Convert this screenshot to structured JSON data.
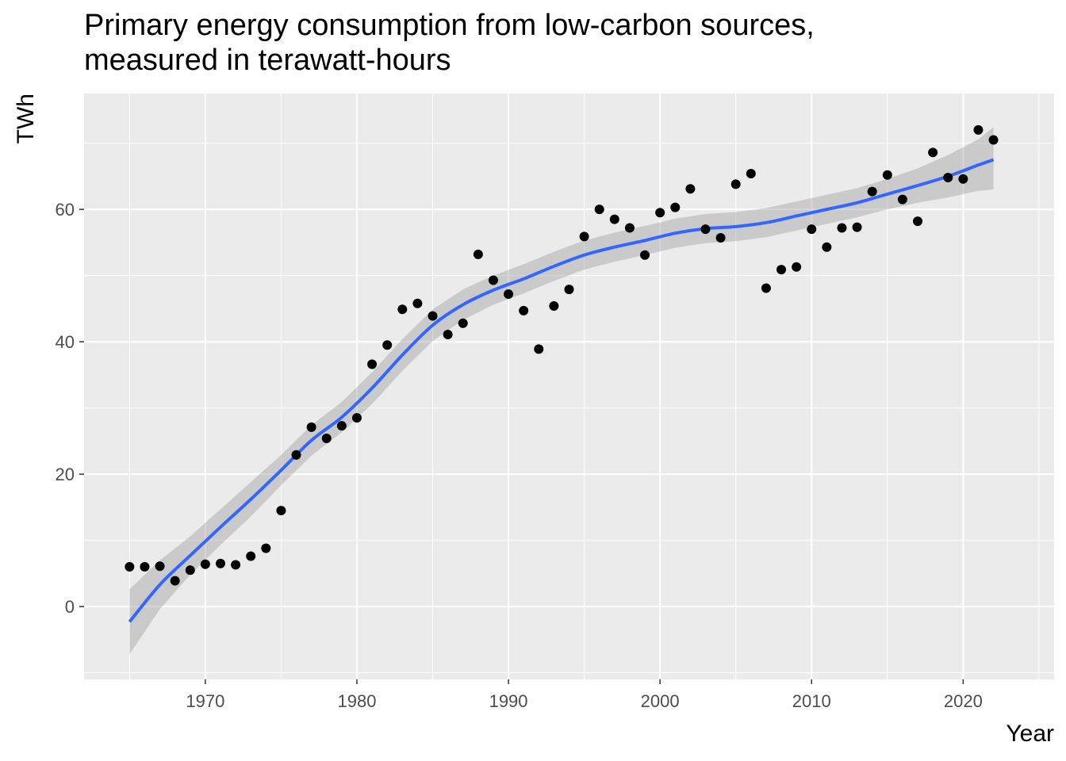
{
  "chart_data": {
    "type": "scatter",
    "title": [
      "Primary energy consumption from low-carbon sources,",
      "measured in terawatt-hours"
    ],
    "xlabel": "Year",
    "ylabel": "TWh",
    "xlim": [
      1962,
      2026
    ],
    "ylim": [
      -11,
      77.5
    ],
    "x_ticks": [
      1970,
      1980,
      1990,
      2000,
      2010,
      2020
    ],
    "y_ticks": [
      0,
      20,
      40,
      60
    ],
    "grid": true,
    "series": [
      {
        "type": "scatter",
        "color": "#000000",
        "points": [
          [
            1965,
            6.0
          ],
          [
            1966,
            6.0
          ],
          [
            1967,
            6.1
          ],
          [
            1968,
            3.9
          ],
          [
            1969,
            5.5
          ],
          [
            1970,
            6.4
          ],
          [
            1971,
            6.5
          ],
          [
            1972,
            6.3
          ],
          [
            1973,
            7.6
          ],
          [
            1974,
            8.8
          ],
          [
            1975,
            14.5
          ],
          [
            1976,
            22.9
          ],
          [
            1977,
            27.1
          ],
          [
            1978,
            25.4
          ],
          [
            1979,
            27.3
          ],
          [
            1980,
            28.5
          ],
          [
            1981,
            36.6
          ],
          [
            1982,
            39.5
          ],
          [
            1983,
            44.9
          ],
          [
            1984,
            45.8
          ],
          [
            1985,
            43.9
          ],
          [
            1986,
            41.1
          ],
          [
            1987,
            42.8
          ],
          [
            1988,
            53.2
          ],
          [
            1989,
            49.3
          ],
          [
            1990,
            47.2
          ],
          [
            1991,
            44.7
          ],
          [
            1992,
            38.9
          ],
          [
            1993,
            45.4
          ],
          [
            1994,
            47.9
          ],
          [
            1995,
            55.9
          ],
          [
            1996,
            60.0
          ],
          [
            1997,
            58.5
          ],
          [
            1998,
            57.2
          ],
          [
            1999,
            53.1
          ],
          [
            2000,
            59.5
          ],
          [
            2001,
            60.3
          ],
          [
            2002,
            63.1
          ],
          [
            2003,
            57.0
          ],
          [
            2004,
            55.7
          ],
          [
            2005,
            63.8
          ],
          [
            2006,
            65.4
          ],
          [
            2007,
            48.1
          ],
          [
            2008,
            50.9
          ],
          [
            2009,
            51.3
          ],
          [
            2010,
            57.0
          ],
          [
            2011,
            54.3
          ],
          [
            2012,
            57.2
          ],
          [
            2013,
            57.3
          ],
          [
            2014,
            62.7
          ],
          [
            2015,
            65.2
          ],
          [
            2016,
            61.5
          ],
          [
            2017,
            58.2
          ],
          [
            2018,
            68.6
          ],
          [
            2019,
            64.8
          ],
          [
            2020,
            64.6
          ],
          [
            2021,
            72.0
          ],
          [
            2022,
            70.5
          ]
        ]
      },
      {
        "type": "line",
        "name": "smooth",
        "color": "#3366ff",
        "band_color": "#999999",
        "points": [
          [
            1965,
            -2.3
          ],
          [
            1967,
            3.3
          ],
          [
            1969,
            7.7
          ],
          [
            1971,
            12.0
          ],
          [
            1973,
            16.2
          ],
          [
            1975,
            20.6
          ],
          [
            1977,
            25.1
          ],
          [
            1979,
            28.6
          ],
          [
            1981,
            33.0
          ],
          [
            1983,
            38.0
          ],
          [
            1985,
            42.5
          ],
          [
            1987,
            45.6
          ],
          [
            1989,
            47.8
          ],
          [
            1991,
            49.5
          ],
          [
            1993,
            51.4
          ],
          [
            1995,
            53.1
          ],
          [
            1997,
            54.3
          ],
          [
            1999,
            55.3
          ],
          [
            2001,
            56.4
          ],
          [
            2003,
            57.1
          ],
          [
            2005,
            57.4
          ],
          [
            2007,
            58.0
          ],
          [
            2009,
            59.0
          ],
          [
            2011,
            60.0
          ],
          [
            2013,
            61.0
          ],
          [
            2015,
            62.3
          ],
          [
            2017,
            63.6
          ],
          [
            2019,
            65.0
          ],
          [
            2021,
            66.7
          ],
          [
            2022,
            67.5
          ]
        ],
        "band": [
          [
            1965,
            -7.2,
            2.6
          ],
          [
            1967,
            -0.4,
            7.0
          ],
          [
            1969,
            4.8,
            10.6
          ],
          [
            1971,
            9.3,
            14.7
          ],
          [
            1973,
            13.6,
            18.8
          ],
          [
            1975,
            18.3,
            22.9
          ],
          [
            1977,
            22.8,
            27.4
          ],
          [
            1979,
            26.3,
            30.9
          ],
          [
            1981,
            30.6,
            35.4
          ],
          [
            1983,
            35.6,
            40.4
          ],
          [
            1985,
            40.1,
            44.9
          ],
          [
            1987,
            43.3,
            47.9
          ],
          [
            1989,
            45.6,
            50.0
          ],
          [
            1991,
            47.3,
            51.7
          ],
          [
            1993,
            49.2,
            53.6
          ],
          [
            1995,
            50.9,
            55.3
          ],
          [
            1997,
            52.1,
            56.5
          ],
          [
            1999,
            53.1,
            57.5
          ],
          [
            2001,
            54.2,
            58.6
          ],
          [
            2003,
            54.9,
            59.3
          ],
          [
            2005,
            55.2,
            59.6
          ],
          [
            2007,
            55.8,
            60.2
          ],
          [
            2009,
            56.8,
            61.2
          ],
          [
            2011,
            57.8,
            62.2
          ],
          [
            2013,
            58.8,
            63.2
          ],
          [
            2015,
            60.0,
            64.6
          ],
          [
            2017,
            61.0,
            66.2
          ],
          [
            2019,
            61.8,
            68.2
          ],
          [
            2021,
            62.8,
            70.6
          ],
          [
            2022,
            63.0,
            72.4
          ]
        ]
      }
    ]
  }
}
